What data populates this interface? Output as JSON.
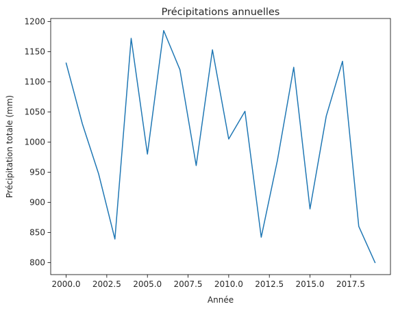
{
  "chart_data": {
    "type": "line",
    "title": "Précipitations annuelles",
    "xlabel": "Année",
    "ylabel": "Précipitation totale (mm)",
    "xlim": [
      1999.05,
      2019.95
    ],
    "ylim": [
      780,
      1205
    ],
    "xticks": [
      2000.0,
      2002.5,
      2005.0,
      2007.5,
      2010.0,
      2012.5,
      2015.0,
      2017.5
    ],
    "xtick_labels": [
      "2000.0",
      "2002.5",
      "2005.0",
      "2007.5",
      "2010.0",
      "2012.5",
      "2015.0",
      "2017.5"
    ],
    "yticks": [
      800,
      850,
      900,
      950,
      1000,
      1050,
      1100,
      1150,
      1200
    ],
    "ytick_labels": [
      "800",
      "850",
      "900",
      "950",
      "1000",
      "1050",
      "1100",
      "1150",
      "1200"
    ],
    "grid": false,
    "series": [
      {
        "color": "#1f77b4",
        "x": [
          2000,
          2001,
          2002,
          2003,
          2004,
          2005,
          2006,
          2007,
          2008,
          2009,
          2010,
          2011,
          2012,
          2013,
          2014,
          2015,
          2016,
          2017,
          2018,
          2019
        ],
        "values": [
          1131,
          1030,
          947,
          839,
          1172,
          980,
          1185,
          1120,
          961,
          1153,
          1005,
          1051,
          842,
          970,
          1124,
          889,
          1043,
          1134,
          860,
          800
        ]
      }
    ]
  }
}
